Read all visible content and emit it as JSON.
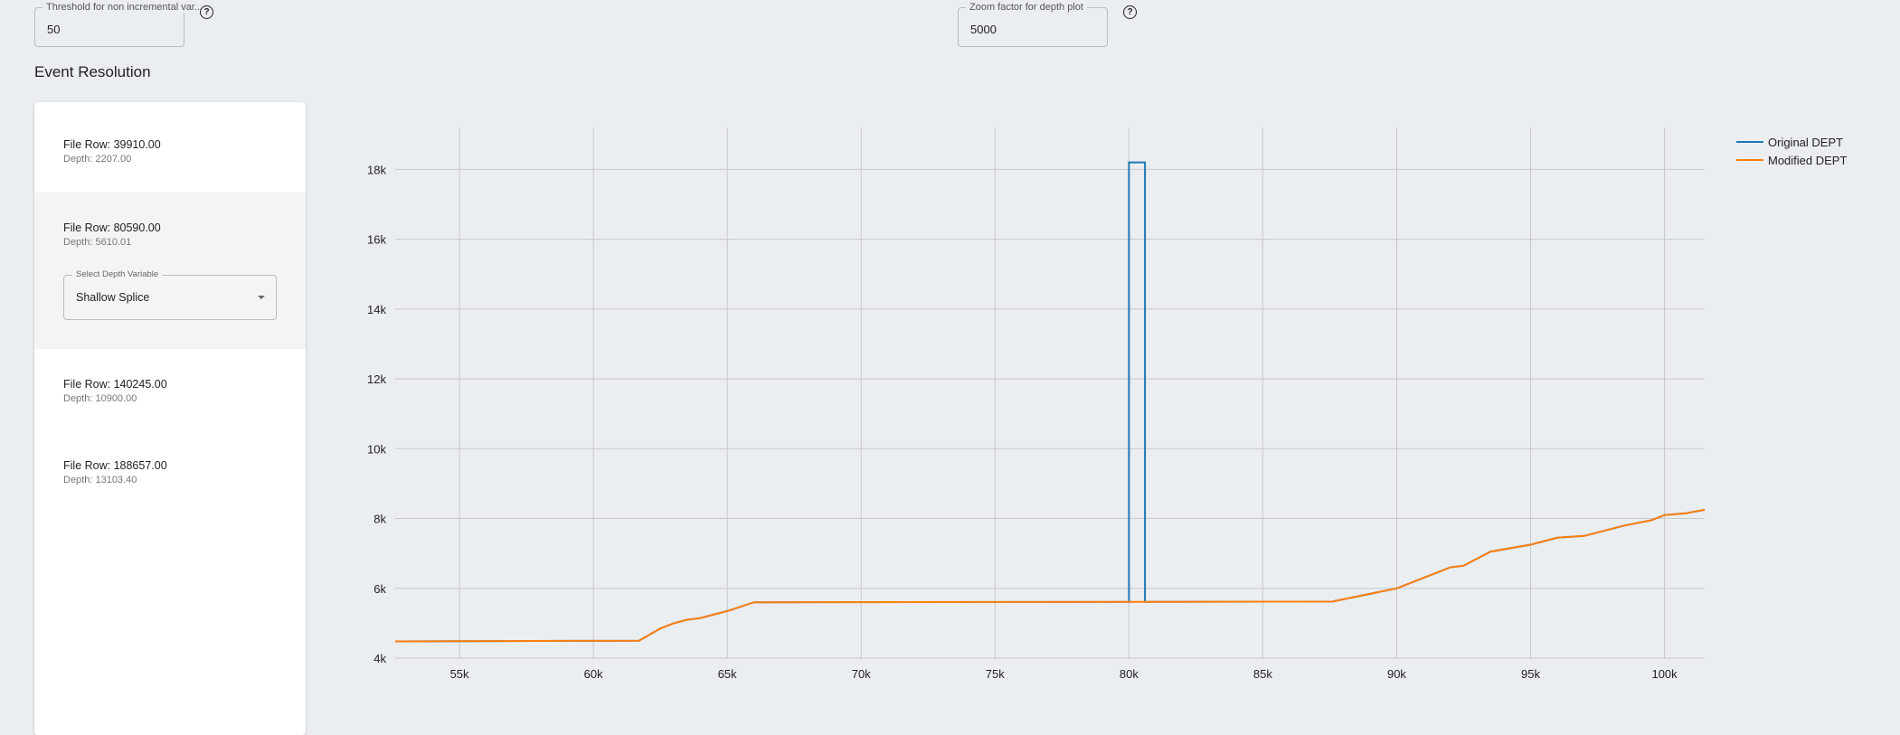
{
  "controls": {
    "threshold": {
      "label": "Threshold for non incremental var...",
      "value": "50"
    },
    "zoom": {
      "label": "Zoom factor for depth plot",
      "value": "5000"
    }
  },
  "section_title": "Event Resolution",
  "events": [
    {
      "row": "File Row: 39910.00",
      "depth": "Depth: 2207.00"
    },
    {
      "row": "File Row: 80590.00",
      "depth": "Depth: 5610.01",
      "select": {
        "label": "Select Depth Variable",
        "value": "Shallow Splice"
      }
    },
    {
      "row": "File Row: 140245.00",
      "depth": "Depth: 10900.00"
    },
    {
      "row": "File Row: 188657.00",
      "depth": "Depth: 13103.40"
    }
  ],
  "chart_data": {
    "type": "line",
    "xlim": [
      52600,
      101500
    ],
    "ylim": [
      4000,
      19200
    ],
    "grid": true,
    "legend_position": "top-right",
    "x_ticks": [
      55000,
      60000,
      65000,
      70000,
      75000,
      80000,
      85000,
      90000,
      95000,
      100000
    ],
    "x_tick_labels": [
      "55k",
      "60k",
      "65k",
      "70k",
      "75k",
      "80k",
      "85k",
      "90k",
      "95k",
      "100k"
    ],
    "y_ticks": [
      4000,
      6000,
      8000,
      10000,
      12000,
      14000,
      16000,
      18000
    ],
    "y_tick_labels": [
      "4k",
      "6k",
      "8k",
      "10k",
      "12k",
      "14k",
      "16k",
      "18k"
    ],
    "series": [
      {
        "name": "Original DEPT",
        "color": "#1f77b4",
        "x": [
          52600,
          61700,
          62500,
          63000,
          63500,
          64000,
          65000,
          66000,
          80000,
          80000,
          80600,
          80600,
          87600,
          90000,
          91000,
          92000,
          92500,
          93500,
          95000,
          96000,
          97000,
          98500,
          99500,
          100000,
          100800,
          101500
        ],
        "y": [
          4480,
          4500,
          4850,
          5000,
          5100,
          5150,
          5350,
          5600,
          5610,
          18200,
          18200,
          5610,
          5620,
          6000,
          6300,
          6600,
          6650,
          7050,
          7250,
          7450,
          7500,
          7800,
          7950,
          8100,
          8150,
          8250
        ]
      },
      {
        "name": "Modified DEPT",
        "color": "#ff7f0e",
        "x": [
          52600,
          61700,
          62500,
          63000,
          63500,
          64000,
          65000,
          66000,
          80000,
          80600,
          87600,
          90000,
          91000,
          92000,
          92500,
          93500,
          95000,
          96000,
          97000,
          98500,
          99500,
          100000,
          100800,
          101500
        ],
        "y": [
          4480,
          4500,
          4850,
          5000,
          5100,
          5150,
          5350,
          5600,
          5610,
          5610,
          5620,
          6000,
          6300,
          6600,
          6650,
          7050,
          7250,
          7450,
          7500,
          7800,
          7950,
          8100,
          8150,
          8250
        ]
      }
    ]
  }
}
